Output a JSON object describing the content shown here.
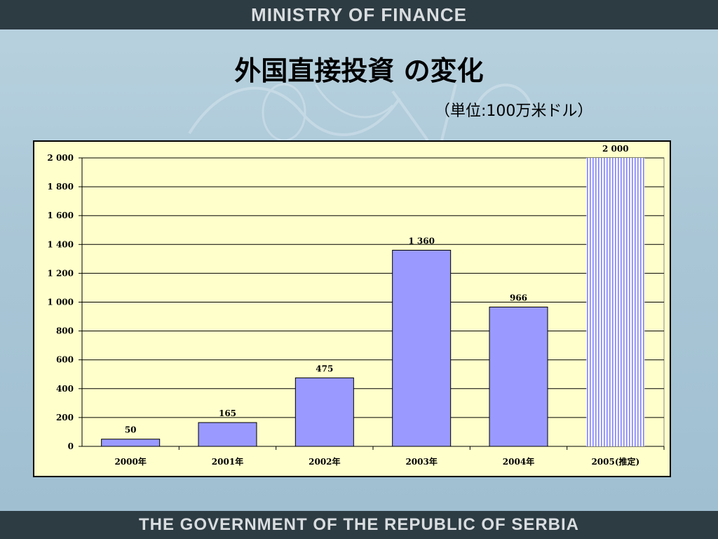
{
  "header": {
    "ministry": "MINISTRY OF FINANCE"
  },
  "slide": {
    "title": "外国直接投資 の変化",
    "unit_note": "（単位:100万米ドル）"
  },
  "footer": {
    "government": "THE GOVERNMENT OF THE REPUBLIC OF SERBIA"
  },
  "colors": {
    "bar_fill": "#9999ff",
    "estimate_stripe": "#8080ff",
    "plot_background": "#ffffcc",
    "header_bg": "#2d3b42"
  },
  "chart_data": {
    "type": "bar",
    "title": "",
    "xlabel": "",
    "ylabel": "",
    "categories": [
      "2000年",
      "2001年",
      "2002年",
      "2003年",
      "2004年",
      "2005(推定)"
    ],
    "values": [
      50,
      165,
      475,
      1360,
      966,
      2000
    ],
    "value_labels": [
      "50",
      "165",
      "475",
      "1 360",
      "966",
      "2 000"
    ],
    "estimated": [
      false,
      false,
      false,
      false,
      false,
      true
    ],
    "ylim": [
      0,
      2000
    ],
    "yticks": [
      0,
      200,
      400,
      600,
      800,
      1000,
      1200,
      1400,
      1600,
      1800,
      2000
    ],
    "ytick_labels": [
      "0",
      "200",
      "400",
      "600",
      "800",
      "1 000",
      "1 200",
      "1 400",
      "1 600",
      "1 800",
      "2 000"
    ],
    "grid": true,
    "legend": "none"
  }
}
